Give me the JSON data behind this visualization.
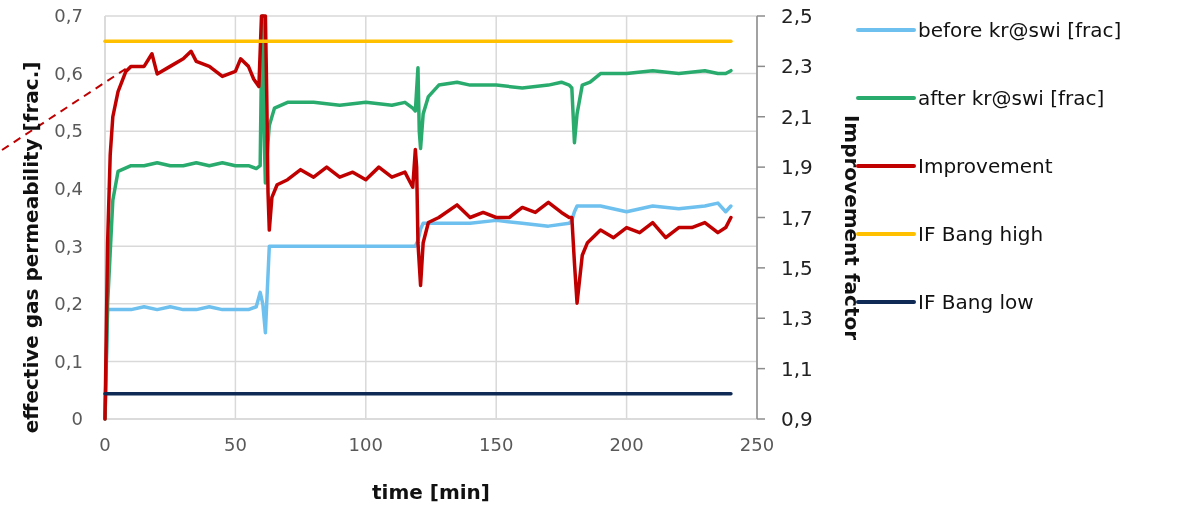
{
  "chart_data": {
    "type": "line",
    "xlabel": "time [min]",
    "ylabel": "effective gas permeability [frac.]",
    "y2label": "Improvement factor",
    "xlim": [
      0,
      250
    ],
    "xticks": [
      0,
      50,
      100,
      150,
      200,
      250
    ],
    "ylim": [
      0,
      0.7
    ],
    "yticks": [
      {
        "value": 0,
        "label": "0"
      },
      {
        "value": 0.1,
        "label": "0,1"
      },
      {
        "value": 0.2,
        "label": "0,2"
      },
      {
        "value": 0.3,
        "label": "0,3"
      },
      {
        "value": 0.4,
        "label": "0,4"
      },
      {
        "value": 0.5,
        "label": "0,5"
      },
      {
        "value": 0.6,
        "label": "0,6"
      },
      {
        "value": 0.7,
        "label": "0,7"
      }
    ],
    "y2lim": [
      0.9,
      2.5
    ],
    "y2ticks": [
      {
        "value": 0.9,
        "label": "0,9"
      },
      {
        "value": 1.1,
        "label": "1,1"
      },
      {
        "value": 1.3,
        "label": "1,3"
      },
      {
        "value": 1.5,
        "label": "1,5"
      },
      {
        "value": 1.7,
        "label": "1,7"
      },
      {
        "value": 1.9,
        "label": "1,9"
      },
      {
        "value": 2.1,
        "label": "2,1"
      },
      {
        "value": 2.3,
        "label": "2,3"
      },
      {
        "value": 2.5,
        "label": "2,5"
      }
    ],
    "grid": true,
    "legend": "right",
    "marker": "none",
    "line_style": "solid",
    "series": [
      {
        "name": "before kr@swi [frac]",
        "color": "#6ec0ee",
        "x": [
          0,
          1,
          5,
          10,
          15,
          20,
          25,
          30,
          35,
          40,
          45,
          50,
          55,
          58,
          59.5,
          60.5,
          61.5,
          62.5,
          63,
          70,
          80,
          90,
          100,
          110,
          117,
          119,
          120,
          121,
          122,
          130,
          140,
          150,
          160,
          170,
          178,
          179,
          180,
          181,
          190,
          200,
          210,
          220,
          230,
          235,
          238,
          240
        ],
        "values": [
          0,
          0.19,
          0.19,
          0.19,
          0.195,
          0.19,
          0.195,
          0.19,
          0.19,
          0.195,
          0.19,
          0.19,
          0.19,
          0.195,
          0.22,
          0.2,
          0.15,
          0.25,
          0.3,
          0.3,
          0.3,
          0.3,
          0.3,
          0.3,
          0.3,
          0.3,
          0.31,
          0.33,
          0.34,
          0.34,
          0.34,
          0.345,
          0.34,
          0.335,
          0.34,
          0.345,
          0.36,
          0.37,
          0.37,
          0.36,
          0.37,
          0.365,
          0.37,
          0.375,
          0.36,
          0.37
        ]
      },
      {
        "name": "after kr@swi [frac]",
        "color": "#2aab6e",
        "x": [
          0,
          1,
          3,
          5,
          10,
          15,
          20,
          25,
          30,
          35,
          40,
          45,
          50,
          55,
          58,
          59.5,
          60,
          60.5,
          61,
          61.5,
          62.5,
          63,
          65,
          70,
          80,
          90,
          100,
          110,
          115,
          118,
          119,
          120,
          120.5,
          121,
          122,
          124,
          128,
          135,
          140,
          150,
          160,
          170,
          175,
          178,
          179,
          180,
          181,
          183,
          186,
          190,
          200,
          210,
          220,
          230,
          235,
          238,
          240
        ],
        "values": [
          0,
          0.2,
          0.38,
          0.43,
          0.44,
          0.44,
          0.445,
          0.44,
          0.44,
          0.445,
          0.44,
          0.445,
          0.44,
          0.44,
          0.435,
          0.44,
          0.62,
          0.7,
          0.5,
          0.41,
          0.48,
          0.51,
          0.54,
          0.55,
          0.55,
          0.545,
          0.55,
          0.545,
          0.55,
          0.54,
          0.535,
          0.61,
          0.5,
          0.47,
          0.53,
          0.56,
          0.58,
          0.585,
          0.58,
          0.58,
          0.575,
          0.58,
          0.585,
          0.58,
          0.575,
          0.48,
          0.53,
          0.58,
          0.585,
          0.6,
          0.6,
          0.605,
          0.6,
          0.605,
          0.6,
          0.6,
          0.605
        ]
      },
      {
        "name": "Improvement",
        "color": "#c00000",
        "axis": "y2",
        "x": [
          0,
          1,
          2,
          3,
          5,
          8,
          10,
          15,
          18,
          20,
          25,
          30,
          33,
          35,
          40,
          45,
          50,
          52,
          55,
          57,
          59,
          60,
          60.5,
          61,
          61.5,
          62,
          62.5,
          63,
          64,
          66,
          70,
          75,
          80,
          85,
          90,
          95,
          100,
          105,
          110,
          115,
          117,
          118,
          119,
          119.5,
          120,
          121,
          122,
          124,
          128,
          135,
          140,
          145,
          150,
          155,
          160,
          165,
          170,
          175,
          178,
          179,
          180,
          181,
          183,
          185,
          190,
          195,
          200,
          205,
          210,
          215,
          220,
          225,
          230,
          235,
          238,
          240
        ],
        "values": [
          0.9,
          1.6,
          1.95,
          2.1,
          2.2,
          2.28,
          2.3,
          2.3,
          2.35,
          2.27,
          2.3,
          2.33,
          2.36,
          2.32,
          2.3,
          2.26,
          2.28,
          2.33,
          2.3,
          2.25,
          2.22,
          2.5,
          2.5,
          2.5,
          2.5,
          2.2,
          1.8,
          1.65,
          1.78,
          1.83,
          1.85,
          1.89,
          1.86,
          1.9,
          1.86,
          1.88,
          1.85,
          1.9,
          1.86,
          1.88,
          1.84,
          1.82,
          1.97,
          1.9,
          1.6,
          1.43,
          1.6,
          1.68,
          1.7,
          1.75,
          1.7,
          1.72,
          1.7,
          1.7,
          1.74,
          1.72,
          1.76,
          1.72,
          1.7,
          1.7,
          1.52,
          1.36,
          1.55,
          1.6,
          1.65,
          1.62,
          1.66,
          1.64,
          1.68,
          1.62,
          1.66,
          1.66,
          1.68,
          1.64,
          1.66,
          1.7
        ]
      },
      {
        "name": "IF Bang high",
        "color": "#ffc000",
        "axis": "y2",
        "x": [
          0,
          240
        ],
        "values": [
          2.4,
          2.4
        ]
      },
      {
        "name": "IF Bang low",
        "color": "#0e2a55",
        "axis": "y2",
        "x": [
          0,
          240
        ],
        "values": [
          1.0,
          1.0
        ]
      }
    ]
  }
}
